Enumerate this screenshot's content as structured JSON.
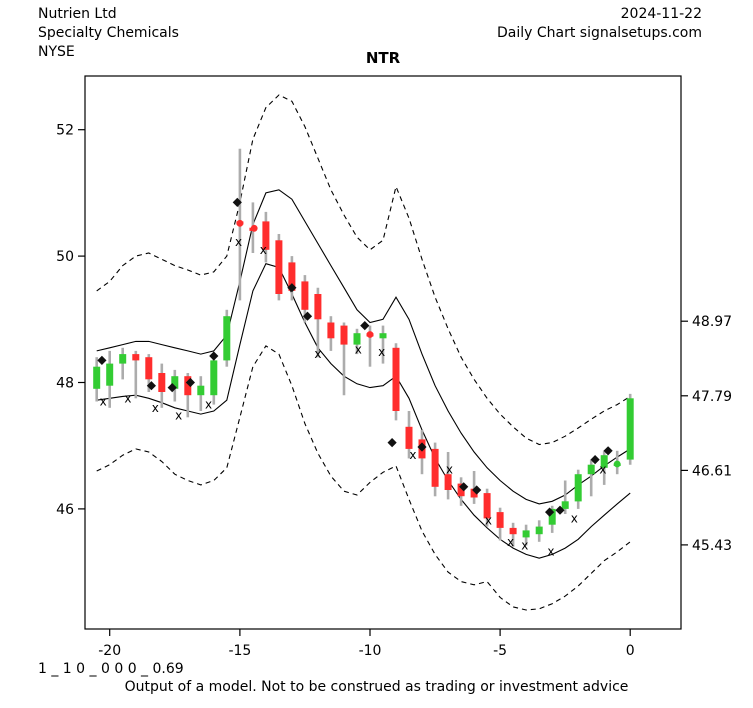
{
  "header": {
    "company": "Nutrien Ltd",
    "industry": "Specialty Chemicals",
    "exchange": "NYSE",
    "date": "2024-11-22",
    "chart_type": "Daily Chart signalsetups.com"
  },
  "footer": {
    "params": "1 _ 1 0 _ 0 0 0 _ 0.69",
    "disclaimer": "Output of a model. Not to be construed as trading or investment advice"
  },
  "chart_data": {
    "type": "candlestick",
    "title": "NTR",
    "xlabel": "",
    "ylabel": "",
    "xlim": [
      -20.95,
      1.95
    ],
    "ylim": [
      44.1,
      52.85
    ],
    "grid": false,
    "legend": "none",
    "x_axis": [
      -20,
      -15,
      -10,
      -5,
      0
    ],
    "y_axis_left": [
      46,
      48,
      50,
      52
    ],
    "y_axis_right": [
      48.97,
      47.79,
      46.61,
      45.43
    ],
    "colors": {
      "up": "#33CC33",
      "down": "#FF2D2D",
      "wick": "#ACACAC",
      "line": "#000000"
    },
    "candles_format": [
      "x",
      "open",
      "high",
      "low",
      "close"
    ],
    "candles": [
      [
        -20.5,
        47.9,
        48.4,
        47.7,
        48.25
      ],
      [
        -20.0,
        47.95,
        48.5,
        47.6,
        48.3
      ],
      [
        -19.5,
        48.3,
        48.55,
        48.05,
        48.45
      ],
      [
        -19.0,
        48.45,
        48.5,
        47.75,
        48.35
      ],
      [
        -18.5,
        48.4,
        48.45,
        47.85,
        48.05
      ],
      [
        -18.0,
        48.15,
        48.3,
        47.6,
        47.85
      ],
      [
        -17.5,
        47.9,
        48.2,
        47.7,
        48.1
      ],
      [
        -17.0,
        48.1,
        48.15,
        47.45,
        47.8
      ],
      [
        -16.5,
        47.8,
        48.1,
        47.55,
        47.95
      ],
      [
        -16.0,
        47.8,
        48.4,
        47.65,
        48.35
      ],
      [
        -15.5,
        48.35,
        49.15,
        48.25,
        49.05
      ],
      [
        -15.0,
        50.55,
        51.7,
        49.3,
        50.5
      ],
      [
        -14.5,
        50.45,
        50.85,
        50.05,
        50.4
      ],
      [
        -14.0,
        50.55,
        50.7,
        49.9,
        50.1
      ],
      [
        -13.5,
        50.25,
        50.35,
        49.3,
        49.4
      ],
      [
        -13.0,
        49.9,
        50.0,
        49.3,
        49.45
      ],
      [
        -12.5,
        49.6,
        49.7,
        48.95,
        49.15
      ],
      [
        -12.0,
        49.4,
        49.5,
        48.4,
        49.0
      ],
      [
        -11.5,
        48.95,
        49.05,
        48.5,
        48.7
      ],
      [
        -11.0,
        48.9,
        48.95,
        47.8,
        48.6
      ],
      [
        -10.5,
        48.6,
        48.85,
        48.45,
        48.78
      ],
      [
        -10.0,
        48.78,
        48.9,
        48.25,
        48.73
      ],
      [
        -9.5,
        48.7,
        48.9,
        48.3,
        48.78
      ],
      [
        -9.0,
        48.55,
        48.62,
        47.4,
        47.55
      ],
      [
        -8.5,
        47.3,
        47.55,
        46.8,
        46.95
      ],
      [
        -8.0,
        47.1,
        47.25,
        46.55,
        46.8
      ],
      [
        -7.5,
        46.95,
        47.05,
        46.2,
        46.35
      ],
      [
        -7.0,
        46.55,
        46.9,
        46.15,
        46.3
      ],
      [
        -6.5,
        46.4,
        46.5,
        46.05,
        46.2
      ],
      [
        -6.0,
        46.32,
        46.6,
        46.08,
        46.18
      ],
      [
        -5.5,
        46.25,
        46.32,
        45.72,
        45.85
      ],
      [
        -5.0,
        45.95,
        46.02,
        45.5,
        45.7
      ],
      [
        -4.5,
        45.7,
        45.78,
        45.4,
        45.6
      ],
      [
        -4.0,
        45.55,
        45.75,
        45.42,
        45.66
      ],
      [
        -3.5,
        45.6,
        45.82,
        45.48,
        45.72
      ],
      [
        -3.0,
        45.75,
        46.05,
        45.62,
        46.0
      ],
      [
        -2.5,
        46.0,
        46.45,
        45.92,
        46.12
      ],
      [
        -2.0,
        46.12,
        46.62,
        46.0,
        46.55
      ],
      [
        -1.5,
        46.55,
        46.78,
        46.2,
        46.7
      ],
      [
        -1.0,
        46.65,
        46.92,
        46.38,
        46.85
      ],
      [
        -0.5,
        46.68,
        46.92,
        46.55,
        46.72
      ],
      [
        0.0,
        46.78,
        47.82,
        46.7,
        47.75
      ]
    ],
    "bands": {
      "upper_solid": [
        [
          -20.5,
          48.5
        ],
        [
          -20,
          48.55
        ],
        [
          -19.5,
          48.6
        ],
        [
          -19,
          48.65
        ],
        [
          -18.5,
          48.65
        ],
        [
          -18,
          48.6
        ],
        [
          -17.5,
          48.55
        ],
        [
          -17,
          48.5
        ],
        [
          -16.5,
          48.45
        ],
        [
          -16,
          48.5
        ],
        [
          -15.5,
          48.75
        ],
        [
          -15,
          49.6
        ],
        [
          -14.5,
          50.5
        ],
        [
          -14,
          51.0
        ],
        [
          -13.5,
          51.05
        ],
        [
          -13,
          50.9
        ],
        [
          -12.5,
          50.55
        ],
        [
          -12,
          50.2
        ],
        [
          -11.5,
          49.85
        ],
        [
          -11,
          49.5
        ],
        [
          -10.5,
          49.15
        ],
        [
          -10,
          48.95
        ],
        [
          -9.5,
          49.0
        ],
        [
          -9,
          49.35
        ],
        [
          -8.5,
          49.0
        ],
        [
          -8,
          48.45
        ],
        [
          -7.5,
          47.95
        ],
        [
          -7,
          47.55
        ],
        [
          -6.5,
          47.2
        ],
        [
          -6,
          46.9
        ],
        [
          -5.5,
          46.65
        ],
        [
          -5,
          46.45
        ],
        [
          -4.5,
          46.28
        ],
        [
          -4,
          46.15
        ],
        [
          -3.5,
          46.08
        ],
        [
          -3,
          46.12
        ],
        [
          -2.5,
          46.22
        ],
        [
          -2,
          46.38
        ],
        [
          -1.5,
          46.52
        ],
        [
          -1,
          46.68
        ],
        [
          -0.5,
          46.82
        ],
        [
          0,
          46.95
        ]
      ],
      "lower_solid": [
        [
          -20.5,
          47.72
        ],
        [
          -20,
          47.75
        ],
        [
          -19.5,
          47.78
        ],
        [
          -19,
          47.8
        ],
        [
          -18.5,
          47.75
        ],
        [
          -18,
          47.68
        ],
        [
          -17.5,
          47.6
        ],
        [
          -17,
          47.55
        ],
        [
          -16.5,
          47.5
        ],
        [
          -16,
          47.55
        ],
        [
          -15.5,
          47.72
        ],
        [
          -15,
          48.6
        ],
        [
          -14.5,
          49.45
        ],
        [
          -14,
          49.88
        ],
        [
          -13.5,
          49.82
        ],
        [
          -13,
          49.4
        ],
        [
          -12.5,
          48.95
        ],
        [
          -12,
          48.55
        ],
        [
          -11.5,
          48.3
        ],
        [
          -11,
          48.1
        ],
        [
          -10.5,
          47.98
        ],
        [
          -10,
          47.92
        ],
        [
          -9.5,
          47.95
        ],
        [
          -9,
          48.1
        ],
        [
          -8.5,
          47.75
        ],
        [
          -8,
          47.25
        ],
        [
          -7.5,
          46.8
        ],
        [
          -7,
          46.45
        ],
        [
          -6.5,
          46.15
        ],
        [
          -6,
          45.9
        ],
        [
          -5.5,
          45.7
        ],
        [
          -5,
          45.52
        ],
        [
          -4.5,
          45.38
        ],
        [
          -4,
          45.28
        ],
        [
          -3.5,
          45.22
        ],
        [
          -3,
          45.28
        ],
        [
          -2.5,
          45.38
        ],
        [
          -2,
          45.52
        ],
        [
          -1.5,
          45.72
        ],
        [
          -1,
          45.9
        ],
        [
          -0.5,
          46.08
        ],
        [
          0,
          46.25
        ]
      ],
      "upper_dashed": [
        [
          -20.5,
          49.45
        ],
        [
          -20,
          49.6
        ],
        [
          -19.5,
          49.85
        ],
        [
          -19,
          50.0
        ],
        [
          -18.5,
          50.05
        ],
        [
          -18,
          49.95
        ],
        [
          -17.5,
          49.85
        ],
        [
          -17,
          49.78
        ],
        [
          -16.5,
          49.7
        ],
        [
          -16,
          49.75
        ],
        [
          -15.5,
          50.0
        ],
        [
          -15,
          50.85
        ],
        [
          -14.5,
          51.85
        ],
        [
          -14,
          52.35
        ],
        [
          -13.5,
          52.55
        ],
        [
          -13,
          52.45
        ],
        [
          -12.5,
          52.05
        ],
        [
          -12,
          51.55
        ],
        [
          -11.5,
          51.05
        ],
        [
          -11,
          50.65
        ],
        [
          -10.5,
          50.3
        ],
        [
          -10,
          50.1
        ],
        [
          -9.5,
          50.25
        ],
        [
          -9,
          51.1
        ],
        [
          -8.5,
          50.6
        ],
        [
          -8,
          49.95
        ],
        [
          -7.5,
          49.35
        ],
        [
          -7,
          48.85
        ],
        [
          -6.5,
          48.4
        ],
        [
          -6,
          48.05
        ],
        [
          -5.5,
          47.75
        ],
        [
          -5,
          47.5
        ],
        [
          -4.5,
          47.3
        ],
        [
          -4,
          47.12
        ],
        [
          -3.5,
          47.02
        ],
        [
          -3,
          47.05
        ],
        [
          -2.5,
          47.15
        ],
        [
          -2,
          47.28
        ],
        [
          -1.5,
          47.42
        ],
        [
          -1,
          47.55
        ],
        [
          -0.5,
          47.65
        ],
        [
          0,
          47.78
        ]
      ],
      "lower_dashed": [
        [
          -20.5,
          46.6
        ],
        [
          -20,
          46.7
        ],
        [
          -19.5,
          46.85
        ],
        [
          -19,
          46.95
        ],
        [
          -18.5,
          46.9
        ],
        [
          -18,
          46.75
        ],
        [
          -17.5,
          46.55
        ],
        [
          -17,
          46.45
        ],
        [
          -16.5,
          46.38
        ],
        [
          -16,
          46.45
        ],
        [
          -15.5,
          46.65
        ],
        [
          -15,
          47.45
        ],
        [
          -14.5,
          48.25
        ],
        [
          -14,
          48.58
        ],
        [
          -13.5,
          48.45
        ],
        [
          -13,
          47.95
        ],
        [
          -12.5,
          47.35
        ],
        [
          -12,
          46.88
        ],
        [
          -11.5,
          46.52
        ],
        [
          -11,
          46.28
        ],
        [
          -10.5,
          46.22
        ],
        [
          -10,
          46.42
        ],
        [
          -9.5,
          46.58
        ],
        [
          -9,
          46.68
        ],
        [
          -8.5,
          46.15
        ],
        [
          -8,
          45.65
        ],
        [
          -7.5,
          45.28
        ],
        [
          -7,
          45.0
        ],
        [
          -6.5,
          44.85
        ],
        [
          -6,
          44.8
        ],
        [
          -5.5,
          44.85
        ],
        [
          -5,
          44.6
        ],
        [
          -4.5,
          44.45
        ],
        [
          -4,
          44.4
        ],
        [
          -3.5,
          44.42
        ],
        [
          -3,
          44.5
        ],
        [
          -2.5,
          44.62
        ],
        [
          -2,
          44.78
        ],
        [
          -1.5,
          44.98
        ],
        [
          -1,
          45.18
        ],
        [
          -0.5,
          45.32
        ],
        [
          0,
          45.48
        ]
      ]
    },
    "markers": {
      "x_glyph": "x",
      "diamonds": [
        [
          -20.3,
          48.35
        ],
        [
          -18.4,
          47.95
        ],
        [
          -17.6,
          47.92
        ],
        [
          -16.9,
          48.0
        ],
        [
          -16.0,
          48.42
        ],
        [
          -15.1,
          50.85
        ],
        [
          -13.0,
          49.5
        ],
        [
          -12.4,
          49.05
        ],
        [
          -10.2,
          48.9
        ],
        [
          -9.15,
          47.05
        ],
        [
          -8.0,
          46.98
        ],
        [
          -6.4,
          46.35
        ],
        [
          -5.9,
          46.3
        ],
        [
          -3.1,
          45.95
        ],
        [
          -2.7,
          45.98
        ],
        [
          -1.35,
          46.78
        ],
        [
          -0.85,
          46.92
        ]
      ],
      "x_marks": [
        [
          -20.25,
          47.7
        ],
        [
          -19.3,
          47.75
        ],
        [
          -18.25,
          47.6
        ],
        [
          -17.35,
          47.48
        ],
        [
          -16.2,
          47.65
        ],
        [
          -15.05,
          50.22
        ],
        [
          -14.1,
          50.1
        ],
        [
          -12.0,
          48.45
        ],
        [
          -10.45,
          48.52
        ],
        [
          -9.55,
          48.48
        ],
        [
          -8.35,
          46.85
        ],
        [
          -6.95,
          46.62
        ],
        [
          -5.45,
          45.82
        ],
        [
          -4.6,
          45.48
        ],
        [
          -4.05,
          45.42
        ],
        [
          -3.05,
          45.33
        ],
        [
          -2.15,
          45.85
        ],
        [
          -1.05,
          46.62
        ]
      ],
      "dots": [
        [
          -15.0,
          50.52,
          "down"
        ],
        [
          -14.45,
          50.44,
          "down"
        ],
        [
          -10.0,
          48.76,
          "down"
        ],
        [
          -0.5,
          46.71,
          "up"
        ]
      ]
    }
  }
}
